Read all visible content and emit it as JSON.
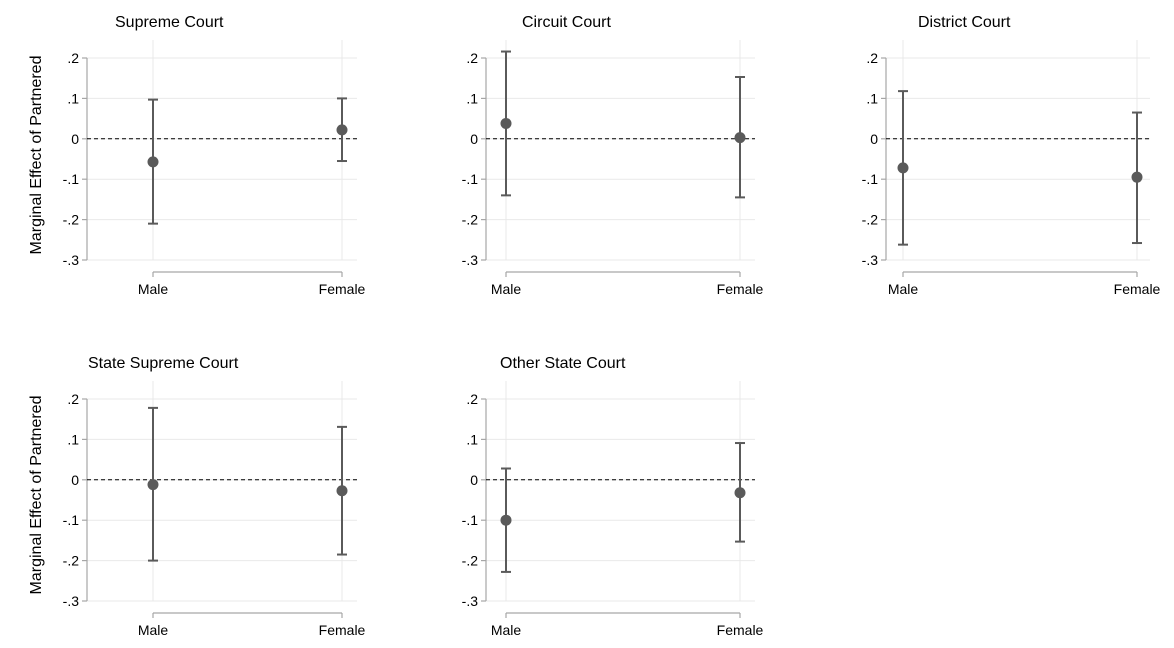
{
  "figure": {
    "row_ylabels": [
      "Marginal Effect of Partnered",
      "Marginal Effect of Partnered"
    ]
  },
  "colors": {
    "marker": "#5a5a5a",
    "whisker": "#5a5a5a",
    "grid": "#e9e9e9",
    "axis": "#a6a6a6",
    "zero_line": "#000000"
  },
  "chart_data": [
    {
      "type": "scatter",
      "title": "Supreme Court",
      "categories": [
        "Male",
        "Female"
      ],
      "estimates": [
        -0.057,
        0.022
      ],
      "ci_low": [
        -0.21,
        -0.055
      ],
      "ci_high": [
        0.097,
        0.1
      ],
      "yticks": [
        ".2",
        ".1",
        "0",
        "-.1",
        "-.2",
        "-.3"
      ],
      "ylim": [
        -0.3,
        0.2
      ],
      "reference_line": 0,
      "grid": true
    },
    {
      "type": "scatter",
      "title": "Circuit Court",
      "categories": [
        "Male",
        "Female"
      ],
      "estimates": [
        0.038,
        0.003
      ],
      "ci_low": [
        -0.14,
        -0.145
      ],
      "ci_high": [
        0.216,
        0.153
      ],
      "yticks": [
        ".2",
        ".1",
        "0",
        "-.1",
        "-.2",
        "-.3"
      ],
      "ylim": [
        -0.3,
        0.2
      ],
      "reference_line": 0,
      "grid": true
    },
    {
      "type": "scatter",
      "title": "District Court",
      "categories": [
        "Male",
        "Female"
      ],
      "estimates": [
        -0.072,
        -0.095
      ],
      "ci_low": [
        -0.262,
        -0.258
      ],
      "ci_high": [
        0.118,
        0.065
      ],
      "yticks": [
        ".2",
        ".1",
        "0",
        "-.1",
        "-.2",
        "-.3"
      ],
      "ylim": [
        -0.3,
        0.2
      ],
      "reference_line": 0,
      "grid": true
    },
    {
      "type": "scatter",
      "title": "State Supreme Court",
      "categories": [
        "Male",
        "Female"
      ],
      "estimates": [
        -0.012,
        -0.027
      ],
      "ci_low": [
        -0.2,
        -0.185
      ],
      "ci_high": [
        0.178,
        0.131
      ],
      "yticks": [
        ".2",
        ".1",
        "0",
        "-.1",
        "-.2",
        "-.3"
      ],
      "ylim": [
        -0.3,
        0.2
      ],
      "reference_line": 0,
      "grid": true
    },
    {
      "type": "scatter",
      "title": "Other State Court",
      "categories": [
        "Male",
        "Female"
      ],
      "estimates": [
        -0.1,
        -0.032
      ],
      "ci_low": [
        -0.228,
        -0.153
      ],
      "ci_high": [
        0.028,
        0.091
      ],
      "yticks": [
        ".2",
        ".1",
        "0",
        "-.1",
        "-.2",
        "-.3"
      ],
      "ylim": [
        -0.3,
        0.2
      ],
      "reference_line": 0,
      "grid": true
    }
  ]
}
